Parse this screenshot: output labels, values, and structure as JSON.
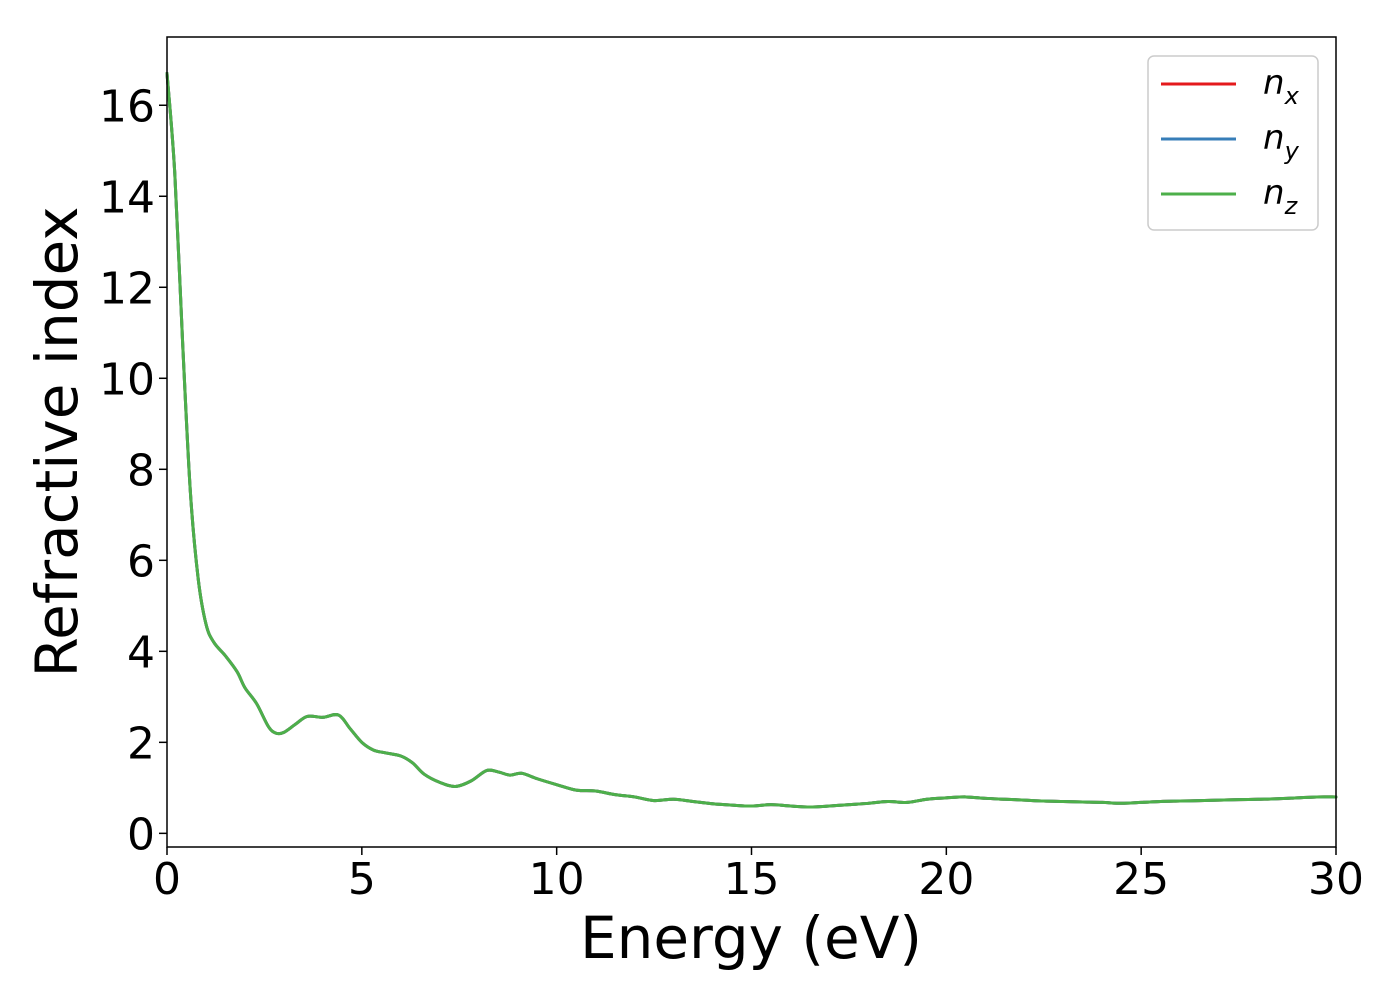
{
  "chart_data": {
    "type": "line",
    "title": "",
    "xlabel": "Energy (eV)",
    "ylabel": "Refractive index",
    "xlim": [
      0,
      30
    ],
    "ylim": [
      -0.3,
      17.5
    ],
    "xticks": [
      0,
      5,
      10,
      15,
      20,
      25,
      30
    ],
    "xtick_labels": [
      "0",
      "5",
      "10",
      "15",
      "20",
      "25",
      "30"
    ],
    "yticks": [
      0,
      2,
      4,
      6,
      8,
      10,
      12,
      14,
      16
    ],
    "ytick_labels": [
      "0",
      "2",
      "4",
      "6",
      "8",
      "10",
      "12",
      "14",
      "16"
    ],
    "grid": false,
    "legend_position": "top-right",
    "colors": {
      "nx": "#e41a1c",
      "ny": "#377eb8",
      "nz": "#4daf4a"
    },
    "x": [
      0,
      0.2,
      0.4,
      0.6,
      0.8,
      1.0,
      1.2,
      1.5,
      1.8,
      2.0,
      2.3,
      2.6,
      2.8,
      3.0,
      3.3,
      3.6,
      4.0,
      4.4,
      4.7,
      5.0,
      5.3,
      5.6,
      6.0,
      6.3,
      6.6,
      7.0,
      7.4,
      7.8,
      8.2,
      8.5,
      8.8,
      9.1,
      9.5,
      10.0,
      10.5,
      11.0,
      11.5,
      12.0,
      12.5,
      13.0,
      13.5,
      14.0,
      14.5,
      15.0,
      15.5,
      16.0,
      16.5,
      17.0,
      17.5,
      18.0,
      18.5,
      19.0,
      19.5,
      20.0,
      20.5,
      21.0,
      21.5,
      22.0,
      22.5,
      23.0,
      23.5,
      24.0,
      24.5,
      25.0,
      25.5,
      26.0,
      26.5,
      27.0,
      27.5,
      28.0,
      28.5,
      29.0,
      29.5,
      30.0
    ],
    "series": [
      {
        "name": "n_x",
        "label_base": "n",
        "label_sub": "x",
        "values": [
          16.7,
          14.5,
          10.8,
          7.5,
          5.6,
          4.6,
          4.2,
          3.9,
          3.55,
          3.2,
          2.85,
          2.35,
          2.2,
          2.22,
          2.4,
          2.57,
          2.55,
          2.6,
          2.3,
          2.0,
          1.83,
          1.77,
          1.7,
          1.55,
          1.3,
          1.12,
          1.03,
          1.15,
          1.38,
          1.35,
          1.28,
          1.32,
          1.2,
          1.07,
          0.95,
          0.93,
          0.85,
          0.8,
          0.72,
          0.75,
          0.7,
          0.65,
          0.62,
          0.6,
          0.63,
          0.6,
          0.58,
          0.6,
          0.63,
          0.66,
          0.7,
          0.68,
          0.75,
          0.78,
          0.8,
          0.77,
          0.75,
          0.73,
          0.71,
          0.7,
          0.69,
          0.68,
          0.66,
          0.68,
          0.7,
          0.71,
          0.72,
          0.73,
          0.74,
          0.75,
          0.76,
          0.78,
          0.8,
          0.8
        ]
      },
      {
        "name": "n_y",
        "label_base": "n",
        "label_sub": "y",
        "values": [
          16.7,
          14.5,
          10.8,
          7.5,
          5.6,
          4.6,
          4.2,
          3.9,
          3.55,
          3.2,
          2.85,
          2.35,
          2.2,
          2.22,
          2.4,
          2.57,
          2.55,
          2.6,
          2.3,
          2.0,
          1.83,
          1.77,
          1.7,
          1.55,
          1.3,
          1.12,
          1.03,
          1.15,
          1.38,
          1.35,
          1.28,
          1.32,
          1.2,
          1.07,
          0.95,
          0.93,
          0.85,
          0.8,
          0.72,
          0.75,
          0.7,
          0.65,
          0.62,
          0.6,
          0.63,
          0.6,
          0.58,
          0.6,
          0.63,
          0.66,
          0.7,
          0.68,
          0.75,
          0.78,
          0.8,
          0.77,
          0.75,
          0.73,
          0.71,
          0.7,
          0.69,
          0.68,
          0.66,
          0.68,
          0.7,
          0.71,
          0.72,
          0.73,
          0.74,
          0.75,
          0.76,
          0.78,
          0.8,
          0.8
        ]
      },
      {
        "name": "n_z",
        "label_base": "n",
        "label_sub": "z",
        "values": [
          16.7,
          14.5,
          10.8,
          7.5,
          5.6,
          4.6,
          4.2,
          3.9,
          3.55,
          3.2,
          2.85,
          2.35,
          2.2,
          2.22,
          2.4,
          2.57,
          2.55,
          2.6,
          2.3,
          2.0,
          1.83,
          1.77,
          1.7,
          1.55,
          1.3,
          1.12,
          1.03,
          1.15,
          1.38,
          1.35,
          1.28,
          1.32,
          1.2,
          1.07,
          0.95,
          0.93,
          0.85,
          0.8,
          0.72,
          0.75,
          0.7,
          0.65,
          0.62,
          0.6,
          0.63,
          0.6,
          0.58,
          0.6,
          0.63,
          0.66,
          0.7,
          0.68,
          0.75,
          0.78,
          0.8,
          0.77,
          0.75,
          0.73,
          0.71,
          0.7,
          0.69,
          0.68,
          0.66,
          0.68,
          0.7,
          0.71,
          0.72,
          0.73,
          0.74,
          0.75,
          0.76,
          0.78,
          0.8,
          0.8
        ]
      }
    ]
  }
}
